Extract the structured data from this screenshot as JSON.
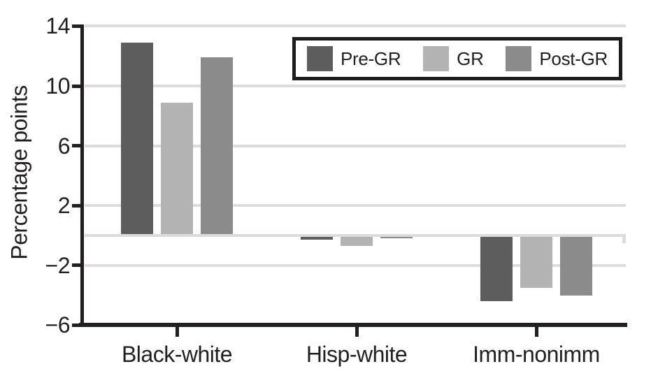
{
  "figure": {
    "ylabel": "Percentage points"
  },
  "chart_data": {
    "type": "bar",
    "title": "",
    "xlabel": "",
    "ylabel": "Percentage points",
    "categories": [
      "Black-white",
      "Hisp-white",
      "Imm-nonimm"
    ],
    "series": [
      {
        "name": "Pre-GR",
        "color": "#5d5d5d",
        "values": [
          12.9,
          -0.3,
          -4.4
        ]
      },
      {
        "name": "GR",
        "color": "#b3b3b3",
        "values": [
          8.9,
          -0.7,
          -3.5
        ]
      },
      {
        "name": "Post-GR",
        "color": "#8b8b8b",
        "values": [
          11.9,
          -0.2,
          -4.0
        ]
      }
    ],
    "y_ticks": [
      14,
      10,
      6,
      2,
      -2,
      -6
    ],
    "gridline_values": [
      14,
      10,
      6,
      2,
      0,
      -2
    ],
    "ylim": [
      -6,
      14
    ],
    "grid": true,
    "legend_position": "top-right",
    "colors": {
      "axis": "#231f20",
      "gridline": "#dcdcdc",
      "background": "#ffffff"
    }
  }
}
